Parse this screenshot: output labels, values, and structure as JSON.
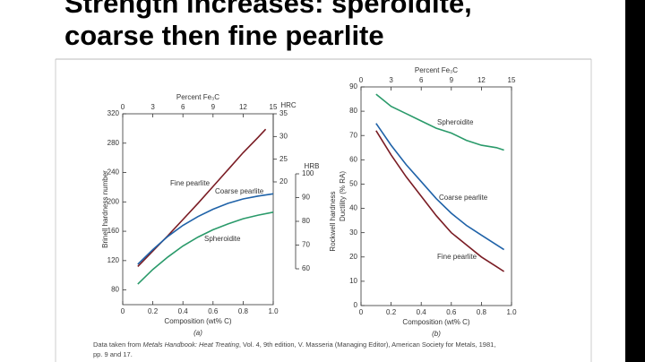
{
  "slide": {
    "title": [
      "Strength increases: speroidite,",
      "coarse then fine pearlite"
    ],
    "footnote": {
      "before": "Data taken from ",
      "italic": "Metals Handbook: Heat Treating",
      "after": ", Vol. 4, 9th edition, V. Masseria (Managing Editor), American Society for Metals, 1981,",
      "line2": "pp. 9 and 17."
    }
  },
  "chart_data": [
    {
      "type": "line",
      "panel": "(a)",
      "xlabel": "Composition (wt% C)",
      "ylabel": "Brinell hardness number",
      "xlim": [
        0,
        1
      ],
      "xticks": [
        0,
        0.2,
        0.4,
        0.6,
        0.8,
        {
          "value": 1,
          "label": "1.0"
        }
      ],
      "ylim": [
        60,
        320
      ],
      "yticks": [
        80,
        120,
        160,
        200,
        240,
        280,
        320
      ],
      "x2label": "Percent Fe₃C",
      "x2lim": [
        0,
        15
      ],
      "x2ticks": [
        0,
        3,
        6,
        9,
        12,
        15
      ],
      "y2label": "HRC",
      "y2lim": [
        20,
        35
      ],
      "y2ticks": [
        20,
        25,
        30,
        35
      ],
      "y3label": "HRB",
      "y3lim": [
        60,
        100
      ],
      "y3ticks": [
        60,
        70,
        80,
        90,
        100
      ],
      "y3title": "Rockwell hardness",
      "series": [
        {
          "name": "Fine pearlite",
          "color": "#7a1c24",
          "x": [
            0.1,
            0.2,
            0.3,
            0.4,
            0.5,
            0.6,
            0.7,
            0.8,
            0.9,
            0.95
          ],
          "values": [
            112,
            133,
            154,
            176,
            198,
            221,
            244,
            267,
            288,
            299
          ]
        },
        {
          "name": "Coarse pearlite",
          "color": "#1f62a8",
          "x": [
            0.1,
            0.2,
            0.3,
            0.4,
            0.5,
            0.6,
            0.7,
            0.8,
            0.9,
            1.0
          ],
          "values": [
            115,
            135,
            153,
            168,
            180,
            190,
            198,
            204,
            208,
            211
          ]
        },
        {
          "name": "Spheroidite",
          "color": "#2a9a6a",
          "x": [
            0.1,
            0.2,
            0.3,
            0.4,
            0.5,
            0.6,
            0.7,
            0.8,
            0.9,
            1.0
          ],
          "values": [
            88,
            108,
            125,
            140,
            152,
            162,
            170,
            177,
            182,
            186
          ]
        }
      ]
    },
    {
      "type": "line",
      "panel": "(b)",
      "xlabel": "Composition (wt% C)",
      "ylabel": "Ductility (% RA)",
      "xlim": [
        0,
        1
      ],
      "xticks": [
        0,
        0.2,
        0.4,
        0.6,
        0.8,
        {
          "value": 1,
          "label": "1.0"
        }
      ],
      "ylim": [
        0,
        90
      ],
      "yticks": [
        0,
        10,
        20,
        30,
        40,
        50,
        60,
        70,
        80,
        90
      ],
      "x2label": "Percent Fe₃C",
      "x2lim": [
        0,
        15
      ],
      "x2ticks": [
        0,
        3,
        6,
        9,
        12,
        15
      ],
      "series": [
        {
          "name": "Fine pearlite",
          "color": "#7a1c24",
          "x": [
            0.1,
            0.2,
            0.3,
            0.4,
            0.5,
            0.6,
            0.7,
            0.8,
            0.9,
            0.95
          ],
          "values": [
            72,
            62,
            53,
            45,
            37,
            30,
            25,
            20,
            16,
            14
          ]
        },
        {
          "name": "Coarse pearlite",
          "color": "#1f62a8",
          "x": [
            0.1,
            0.2,
            0.3,
            0.4,
            0.5,
            0.6,
            0.7,
            0.8,
            0.9,
            0.95
          ],
          "values": [
            75,
            66,
            58,
            51,
            44,
            38,
            33,
            29,
            25,
            23
          ]
        },
        {
          "name": "Spheroidite",
          "color": "#2a9a6a",
          "x": [
            0.1,
            0.2,
            0.3,
            0.4,
            0.5,
            0.6,
            0.7,
            0.8,
            0.9,
            0.95
          ],
          "values": [
            87,
            82,
            79,
            76,
            73,
            71,
            68,
            66,
            65,
            64
          ]
        }
      ]
    }
  ]
}
